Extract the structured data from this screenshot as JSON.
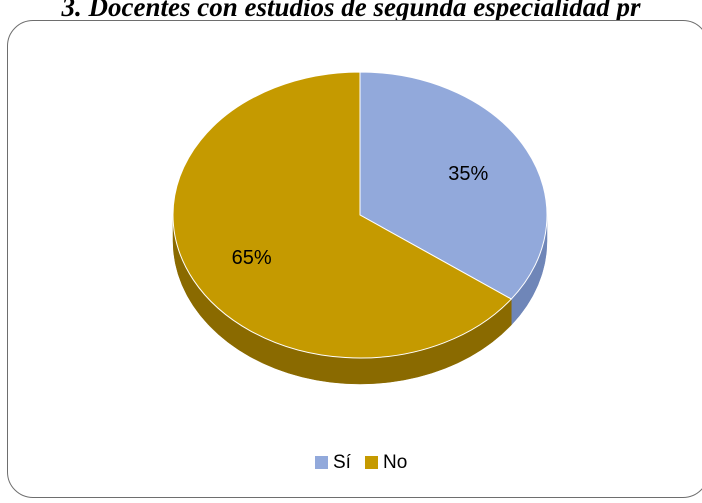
{
  "chart_data": {
    "type": "pie",
    "title": "3. Docentes con estudios de segunda especialidad pr",
    "slices": [
      {
        "name": "Sí",
        "value": 35,
        "label": "35%",
        "color": "#92a9db",
        "side_color": "#6f86b8"
      },
      {
        "name": "No",
        "value": 65,
        "label": "65%",
        "color": "#c59a00",
        "side_color": "#8a6a00"
      }
    ],
    "legend_position": "bottom"
  }
}
